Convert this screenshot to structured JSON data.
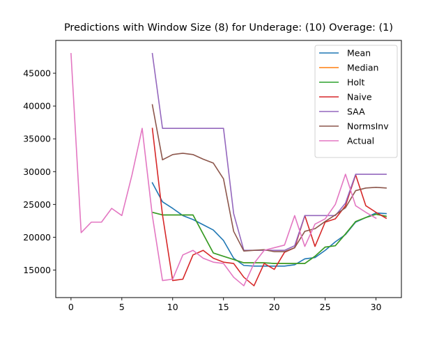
{
  "chart_data": {
    "type": "line",
    "title": "Predictions with Window Size (8) for Underage: (10) Overage: (1)",
    "xlabel": "",
    "ylabel": "",
    "xlim": [
      -1.5,
      32.5
    ],
    "ylim": [
      10800,
      50000
    ],
    "x_ticks": [
      0,
      5,
      10,
      15,
      20,
      25,
      30
    ],
    "y_ticks": [
      15000,
      20000,
      25000,
      30000,
      35000,
      40000,
      45000
    ],
    "grid": false,
    "legend_position": "top-right",
    "series": [
      {
        "name": "Mean",
        "color": "#1f77b4",
        "x": [
          8,
          9,
          10,
          11,
          12,
          13,
          14,
          15,
          16,
          17,
          18,
          19,
          20,
          21,
          22,
          23,
          24,
          25,
          26,
          27,
          28,
          29,
          30,
          31
        ],
        "y": [
          28300,
          25400,
          24400,
          23300,
          22700,
          21900,
          21100,
          19500,
          16800,
          15700,
          15600,
          15600,
          15600,
          15600,
          15800,
          16700,
          16900,
          18000,
          19300,
          20400,
          22300,
          23000,
          23700,
          23600
        ]
      },
      {
        "name": "Median",
        "color": "#ff7f0e",
        "x": [
          8,
          9,
          10,
          11,
          12,
          13,
          14,
          15,
          16,
          17,
          18,
          19,
          20,
          21,
          22,
          23,
          24,
          25,
          26,
          27,
          28,
          29,
          30,
          31
        ],
        "y": [
          23800,
          23400,
          23400,
          23400,
          23400,
          20500,
          17600,
          17100,
          16600,
          16100,
          16100,
          16100,
          16000,
          16000,
          16000,
          16000,
          17100,
          18500,
          18700,
          20500,
          22400,
          23000,
          23500,
          23200
        ]
      },
      {
        "name": "Holt",
        "color": "#2ca02c",
        "x": [
          8,
          9,
          10,
          11,
          12,
          13,
          14,
          15,
          16,
          17,
          18,
          19,
          20,
          21,
          22,
          23,
          24,
          25,
          26,
          27,
          28,
          29,
          30,
          31
        ],
        "y": [
          23800,
          23400,
          23400,
          23400,
          23400,
          20500,
          17600,
          17100,
          16600,
          16100,
          16100,
          16100,
          16000,
          16000,
          16000,
          16000,
          17100,
          18500,
          18700,
          20500,
          22400,
          23000,
          23500,
          23200
        ]
      },
      {
        "name": "Naive",
        "color": "#d62728",
        "x": [
          8,
          9,
          10,
          11,
          12,
          13,
          14,
          15,
          16,
          17,
          18,
          19,
          20,
          21,
          22,
          23,
          24,
          25,
          26,
          27,
          28,
          29,
          30,
          31
        ],
        "y": [
          36600,
          23400,
          13400,
          13600,
          17300,
          18000,
          16800,
          16200,
          16000,
          13900,
          12600,
          16000,
          15100,
          17700,
          18400,
          23300,
          18600,
          22300,
          22800,
          24800,
          29500,
          24800,
          23800,
          22900
        ]
      },
      {
        "name": "SAA",
        "color": "#9467bd",
        "x": [
          8,
          9,
          10,
          11,
          12,
          13,
          14,
          15,
          16,
          17,
          18,
          19,
          20,
          21,
          22,
          23,
          24,
          25,
          26,
          27,
          28,
          29,
          30,
          31
        ],
        "y": [
          48000,
          36600,
          36600,
          36600,
          36600,
          36600,
          36600,
          36600,
          23600,
          18000,
          18000,
          18000,
          18000,
          18000,
          18700,
          23300,
          23300,
          23300,
          23300,
          25200,
          29600,
          29600,
          29600,
          29600
        ]
      },
      {
        "name": "NormsInv",
        "color": "#8c564b",
        "x": [
          8,
          9,
          10,
          11,
          12,
          13,
          14,
          15,
          16,
          17,
          18,
          19,
          20,
          21,
          22,
          23,
          24,
          25,
          26,
          27,
          28,
          29,
          30,
          31
        ],
        "y": [
          40200,
          31800,
          32600,
          32800,
          32600,
          31900,
          31300,
          28900,
          20900,
          17900,
          18000,
          18100,
          17800,
          17800,
          18400,
          20900,
          21300,
          22400,
          23400,
          24500,
          27100,
          27500,
          27600,
          27500
        ]
      },
      {
        "name": "Actual",
        "color": "#e377c2",
        "x": [
          0,
          1,
          2,
          3,
          4,
          5,
          6,
          7,
          8,
          9,
          10,
          11,
          12,
          13,
          14,
          15,
          16,
          17,
          18,
          19,
          20,
          21,
          22,
          23,
          24,
          25,
          26,
          27,
          28,
          29,
          30
        ],
        "y": [
          48000,
          20700,
          22300,
          22300,
          24400,
          23300,
          29500,
          36600,
          23300,
          13400,
          13600,
          17300,
          18000,
          16800,
          16200,
          16000,
          13900,
          12600,
          16000,
          18000,
          18400,
          18800,
          23300,
          18600,
          22000,
          22800,
          25000,
          29600,
          24800,
          23800,
          22900
        ]
      }
    ]
  }
}
